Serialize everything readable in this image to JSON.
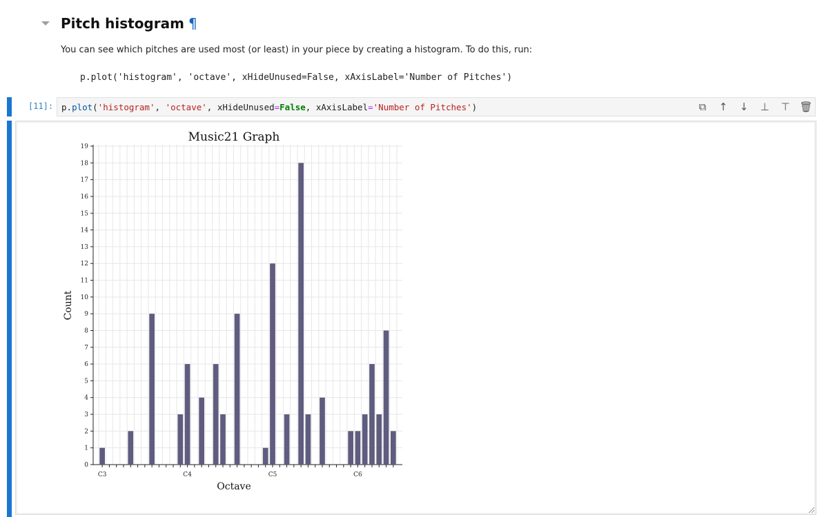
{
  "markdown": {
    "heading": "Pitch histogram",
    "anchor": "¶",
    "paragraph": "You can see which pitches are used most (or least) in your piece by creating a histogram. To do this, run:",
    "code": "p.plot('histogram', 'octave', xHideUnused=False, xAxisLabel='Number of Pitches')"
  },
  "cell": {
    "prompt": "[11]:",
    "code_tokens": [
      {
        "t": "p.",
        "c": ""
      },
      {
        "t": "plot",
        "c": "tok-fn"
      },
      {
        "t": "(",
        "c": ""
      },
      {
        "t": "'histogram'",
        "c": "tok-str"
      },
      {
        "t": ", ",
        "c": ""
      },
      {
        "t": "'octave'",
        "c": "tok-str"
      },
      {
        "t": ", xHideUnused",
        "c": ""
      },
      {
        "t": "=",
        "c": "tok-op"
      },
      {
        "t": "False",
        "c": "tok-kw"
      },
      {
        "t": ", xAxisLabel",
        "c": ""
      },
      {
        "t": "=",
        "c": "tok-op"
      },
      {
        "t": "'Number of Pitches'",
        "c": "tok-str"
      },
      {
        "t": ")",
        "c": ""
      }
    ]
  },
  "toolbar": {
    "icons": [
      "duplicate-icon",
      "move-up-icon",
      "move-down-icon",
      "insert-above-icon",
      "insert-below-icon",
      "delete-icon"
    ],
    "glyphs": [
      "⧉",
      "↑",
      "↓",
      "⊥",
      "⊤",
      "🗑"
    ]
  },
  "chart_data": {
    "type": "bar",
    "title": "Music21 Graph",
    "xlabel": "Octave",
    "ylabel": "Count",
    "ylim": [
      0,
      19
    ],
    "grid": true,
    "bar_color": "#5f5c7f",
    "x_tick_labels": [
      {
        "label": "C3",
        "slot": 0
      },
      {
        "label": "C4",
        "slot": 12
      },
      {
        "label": "C5",
        "slot": 24
      },
      {
        "label": "C6",
        "slot": 36
      }
    ],
    "slots": 42,
    "values": [
      1,
      0,
      0,
      0,
      2,
      0,
      0,
      9,
      0,
      0,
      0,
      3,
      6,
      0,
      4,
      0,
      6,
      3,
      0,
      9,
      0,
      0,
      0,
      1,
      12,
      0,
      3,
      0,
      18,
      3,
      0,
      4,
      0,
      0,
      0,
      2,
      2,
      3,
      6,
      3,
      8,
      2
    ]
  }
}
